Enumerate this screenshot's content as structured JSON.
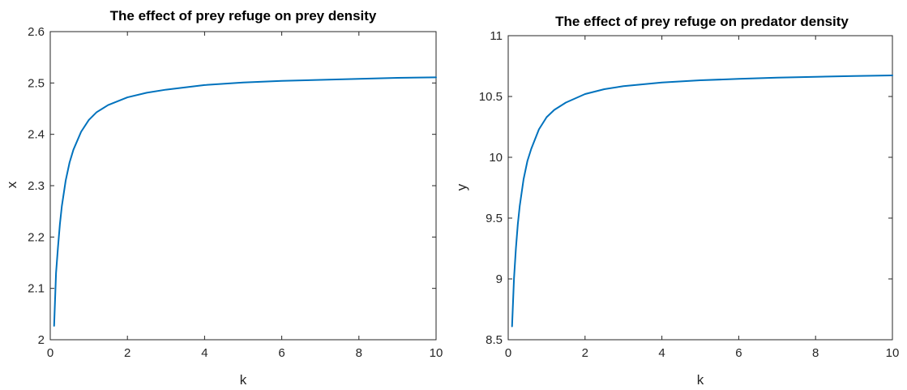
{
  "chart_data": [
    {
      "type": "line",
      "title": "The effect of prey refuge on prey density",
      "xlabel": "k",
      "ylabel": "x",
      "xlim": [
        0,
        10
      ],
      "ylim": [
        2,
        2.6
      ],
      "xticks": [
        "0",
        "2",
        "4",
        "6",
        "8",
        "10"
      ],
      "yticks": [
        "2",
        "2.1",
        "2.2",
        "2.3",
        "2.4",
        "2.5",
        "2.6"
      ],
      "grid": false,
      "color": "#0072BD",
      "series": [
        {
          "x": [
            0.1,
            0.15,
            0.2,
            0.25,
            0.3,
            0.4,
            0.5,
            0.6,
            0.8,
            1.0,
            1.2,
            1.5,
            2.0,
            2.5,
            3.0,
            4.0,
            5.0,
            6.0,
            7.0,
            8.0,
            9.0,
            10.0
          ],
          "y": [
            2.027,
            2.13,
            2.18,
            2.225,
            2.26,
            2.31,
            2.345,
            2.37,
            2.405,
            2.428,
            2.443,
            2.457,
            2.472,
            2.481,
            2.487,
            2.496,
            2.501,
            2.504,
            2.506,
            2.508,
            2.51,
            2.511
          ]
        }
      ]
    },
    {
      "type": "line",
      "title": "The effect of prey refuge on predator density",
      "xlabel": "k",
      "ylabel": "y",
      "xlim": [
        0,
        10
      ],
      "ylim": [
        8.5,
        11
      ],
      "xticks": [
        "0",
        "2",
        "4",
        "6",
        "8",
        "10"
      ],
      "yticks": [
        "8.5",
        "9",
        "9.5",
        "10",
        "10.5",
        "11"
      ],
      "grid": false,
      "color": "#0072BD",
      "series": [
        {
          "x": [
            0.1,
            0.15,
            0.2,
            0.25,
            0.3,
            0.4,
            0.5,
            0.6,
            0.8,
            1.0,
            1.2,
            1.5,
            2.0,
            2.5,
            3.0,
            4.0,
            5.0,
            6.0,
            7.0,
            8.0,
            9.0,
            10.0
          ],
          "y": [
            8.61,
            9.0,
            9.25,
            9.45,
            9.6,
            9.82,
            9.97,
            10.07,
            10.23,
            10.33,
            10.39,
            10.45,
            10.52,
            10.56,
            10.585,
            10.615,
            10.633,
            10.645,
            10.655,
            10.662,
            10.668,
            10.673
          ]
        }
      ]
    }
  ]
}
